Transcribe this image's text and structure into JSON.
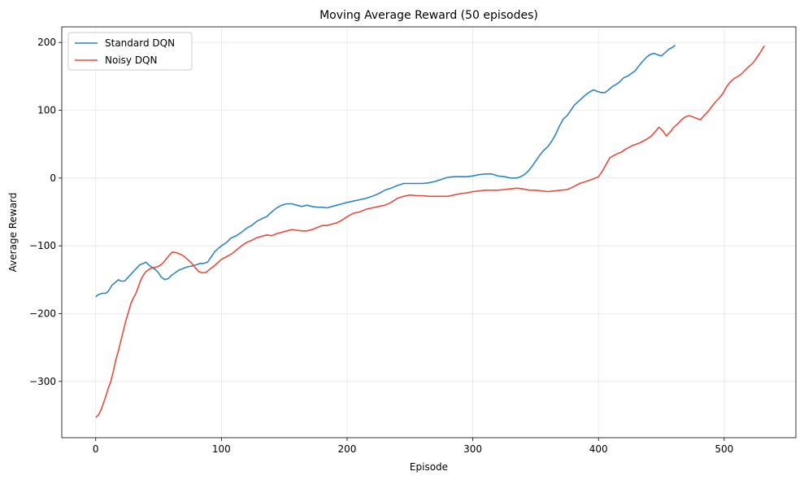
{
  "chart_data": {
    "type": "line",
    "title": "Moving Average Reward (50 episodes)",
    "xlabel": "Episode",
    "ylabel": "Average Reward",
    "xlim": [
      -27,
      557
    ],
    "ylim": [
      -383,
      223
    ],
    "xticks": [
      0,
      100,
      200,
      300,
      400,
      500
    ],
    "yticks": [
      -300,
      -200,
      -100,
      0,
      100,
      200
    ],
    "ytick_labels": [
      "−300",
      "−200",
      "−100",
      "0",
      "100",
      "200"
    ],
    "grid": true,
    "legend": "top-left",
    "series": [
      {
        "name": "Standard DQN",
        "color": "#2e86c1",
        "points": [
          [
            0,
            -175
          ],
          [
            2,
            -172
          ],
          [
            5,
            -170
          ],
          [
            8,
            -170
          ],
          [
            10,
            -167
          ],
          [
            13,
            -158
          ],
          [
            15,
            -155
          ],
          [
            18,
            -150
          ],
          [
            20,
            -152
          ],
          [
            23,
            -152
          ],
          [
            25,
            -148
          ],
          [
            28,
            -142
          ],
          [
            30,
            -138
          ],
          [
            33,
            -132
          ],
          [
            35,
            -128
          ],
          [
            38,
            -126
          ],
          [
            40,
            -124
          ],
          [
            42,
            -128
          ],
          [
            45,
            -132
          ],
          [
            48,
            -136
          ],
          [
            50,
            -140
          ],
          [
            52,
            -146
          ],
          [
            55,
            -150
          ],
          [
            58,
            -148
          ],
          [
            60,
            -144
          ],
          [
            63,
            -140
          ],
          [
            66,
            -136
          ],
          [
            70,
            -133
          ],
          [
            73,
            -131
          ],
          [
            76,
            -130
          ],
          [
            80,
            -128
          ],
          [
            83,
            -126
          ],
          [
            86,
            -126
          ],
          [
            89,
            -124
          ],
          [
            92,
            -116
          ],
          [
            95,
            -108
          ],
          [
            98,
            -103
          ],
          [
            100,
            -100
          ],
          [
            104,
            -95
          ],
          [
            108,
            -88
          ],
          [
            112,
            -85
          ],
          [
            116,
            -80
          ],
          [
            120,
            -74
          ],
          [
            124,
            -70
          ],
          [
            128,
            -64
          ],
          [
            132,
            -60
          ],
          [
            136,
            -57
          ],
          [
            140,
            -50
          ],
          [
            144,
            -44
          ],
          [
            148,
            -40
          ],
          [
            152,
            -38
          ],
          [
            156,
            -38
          ],
          [
            160,
            -40
          ],
          [
            164,
            -42
          ],
          [
            168,
            -40
          ],
          [
            172,
            -42
          ],
          [
            176,
            -43
          ],
          [
            180,
            -43
          ],
          [
            184,
            -44
          ],
          [
            188,
            -42
          ],
          [
            192,
            -40
          ],
          [
            196,
            -38
          ],
          [
            200,
            -36
          ],
          [
            205,
            -34
          ],
          [
            210,
            -32
          ],
          [
            215,
            -30
          ],
          [
            220,
            -27
          ],
          [
            225,
            -23
          ],
          [
            230,
            -18
          ],
          [
            235,
            -15
          ],
          [
            240,
            -11
          ],
          [
            245,
            -8
          ],
          [
            250,
            -8
          ],
          [
            255,
            -8
          ],
          [
            260,
            -8
          ],
          [
            265,
            -7
          ],
          [
            270,
            -5
          ],
          [
            275,
            -2
          ],
          [
            280,
            1
          ],
          [
            285,
            2
          ],
          [
            290,
            2
          ],
          [
            295,
            2
          ],
          [
            300,
            3
          ],
          [
            305,
            5
          ],
          [
            310,
            6
          ],
          [
            315,
            6
          ],
          [
            320,
            3
          ],
          [
            325,
            2
          ],
          [
            330,
            0
          ],
          [
            335,
            0
          ],
          [
            338,
            2
          ],
          [
            341,
            5
          ],
          [
            344,
            10
          ],
          [
            347,
            17
          ],
          [
            350,
            25
          ],
          [
            353,
            33
          ],
          [
            356,
            40
          ],
          [
            360,
            47
          ],
          [
            363,
            55
          ],
          [
            366,
            65
          ],
          [
            369,
            77
          ],
          [
            372,
            87
          ],
          [
            375,
            92
          ],
          [
            378,
            100
          ],
          [
            381,
            108
          ],
          [
            384,
            113
          ],
          [
            387,
            118
          ],
          [
            390,
            123
          ],
          [
            393,
            127
          ],
          [
            396,
            130
          ],
          [
            399,
            128
          ],
          [
            402,
            126
          ],
          [
            405,
            126
          ],
          [
            408,
            130
          ],
          [
            411,
            135
          ],
          [
            414,
            138
          ],
          [
            417,
            142
          ],
          [
            420,
            148
          ],
          [
            423,
            150
          ],
          [
            426,
            154
          ],
          [
            429,
            158
          ],
          [
            432,
            165
          ],
          [
            435,
            172
          ],
          [
            438,
            178
          ],
          [
            441,
            182
          ],
          [
            444,
            184
          ],
          [
            447,
            182
          ],
          [
            450,
            180
          ],
          [
            453,
            185
          ],
          [
            456,
            190
          ],
          [
            459,
            193
          ],
          [
            461,
            196
          ]
        ]
      },
      {
        "name": "Noisy DQN",
        "color": "#e74c3c",
        "points": [
          [
            0,
            -353
          ],
          [
            2,
            -350
          ],
          [
            4,
            -343
          ],
          [
            6,
            -333
          ],
          [
            8,
            -322
          ],
          [
            10,
            -310
          ],
          [
            12,
            -300
          ],
          [
            14,
            -285
          ],
          [
            16,
            -268
          ],
          [
            18,
            -255
          ],
          [
            20,
            -240
          ],
          [
            22,
            -225
          ],
          [
            24,
            -210
          ],
          [
            26,
            -198
          ],
          [
            28,
            -185
          ],
          [
            30,
            -177
          ],
          [
            32,
            -170
          ],
          [
            34,
            -160
          ],
          [
            36,
            -150
          ],
          [
            38,
            -143
          ],
          [
            40,
            -138
          ],
          [
            43,
            -134
          ],
          [
            46,
            -132
          ],
          [
            49,
            -131
          ],
          [
            52,
            -128
          ],
          [
            55,
            -122
          ],
          [
            58,
            -115
          ],
          [
            61,
            -109
          ],
          [
            64,
            -110
          ],
          [
            67,
            -112
          ],
          [
            70,
            -115
          ],
          [
            73,
            -120
          ],
          [
            76,
            -125
          ],
          [
            79,
            -132
          ],
          [
            82,
            -138
          ],
          [
            85,
            -140
          ],
          [
            88,
            -139
          ],
          [
            91,
            -134
          ],
          [
            94,
            -130
          ],
          [
            97,
            -125
          ],
          [
            100,
            -120
          ],
          [
            104,
            -116
          ],
          [
            108,
            -112
          ],
          [
            112,
            -106
          ],
          [
            116,
            -100
          ],
          [
            120,
            -95
          ],
          [
            124,
            -92
          ],
          [
            128,
            -88
          ],
          [
            132,
            -86
          ],
          [
            136,
            -84
          ],
          [
            140,
            -85
          ],
          [
            144,
            -82
          ],
          [
            148,
            -80
          ],
          [
            152,
            -78
          ],
          [
            156,
            -76
          ],
          [
            160,
            -77
          ],
          [
            164,
            -78
          ],
          [
            168,
            -78
          ],
          [
            172,
            -76
          ],
          [
            176,
            -73
          ],
          [
            180,
            -70
          ],
          [
            184,
            -70
          ],
          [
            188,
            -68
          ],
          [
            192,
            -66
          ],
          [
            196,
            -62
          ],
          [
            200,
            -57
          ],
          [
            205,
            -52
          ],
          [
            210,
            -50
          ],
          [
            215,
            -46
          ],
          [
            220,
            -44
          ],
          [
            225,
            -42
          ],
          [
            230,
            -40
          ],
          [
            235,
            -36
          ],
          [
            240,
            -30
          ],
          [
            245,
            -27
          ],
          [
            250,
            -25
          ],
          [
            255,
            -26
          ],
          [
            260,
            -26
          ],
          [
            265,
            -27
          ],
          [
            270,
            -27
          ],
          [
            275,
            -27
          ],
          [
            280,
            -27
          ],
          [
            285,
            -25
          ],
          [
            290,
            -23
          ],
          [
            295,
            -22
          ],
          [
            300,
            -20
          ],
          [
            305,
            -19
          ],
          [
            310,
            -18
          ],
          [
            315,
            -18
          ],
          [
            320,
            -18
          ],
          [
            325,
            -17
          ],
          [
            330,
            -16
          ],
          [
            335,
            -15
          ],
          [
            340,
            -16
          ],
          [
            345,
            -18
          ],
          [
            350,
            -18
          ],
          [
            355,
            -19
          ],
          [
            360,
            -20
          ],
          [
            365,
            -19
          ],
          [
            370,
            -18
          ],
          [
            375,
            -17
          ],
          [
            380,
            -13
          ],
          [
            385,
            -8
          ],
          [
            390,
            -5
          ],
          [
            395,
            -2
          ],
          [
            400,
            2
          ],
          [
            403,
            10
          ],
          [
            406,
            20
          ],
          [
            409,
            30
          ],
          [
            412,
            33
          ],
          [
            415,
            36
          ],
          [
            418,
            38
          ],
          [
            421,
            42
          ],
          [
            424,
            45
          ],
          [
            427,
            48
          ],
          [
            430,
            50
          ],
          [
            433,
            52
          ],
          [
            436,
            55
          ],
          [
            439,
            58
          ],
          [
            442,
            62
          ],
          [
            445,
            68
          ],
          [
            448,
            75
          ],
          [
            451,
            70
          ],
          [
            454,
            62
          ],
          [
            457,
            68
          ],
          [
            460,
            75
          ],
          [
            463,
            80
          ],
          [
            466,
            86
          ],
          [
            469,
            90
          ],
          [
            472,
            92
          ],
          [
            475,
            90
          ],
          [
            478,
            88
          ],
          [
            481,
            86
          ],
          [
            484,
            92
          ],
          [
            487,
            98
          ],
          [
            490,
            105
          ],
          [
            493,
            112
          ],
          [
            496,
            118
          ],
          [
            499,
            125
          ],
          [
            502,
            135
          ],
          [
            505,
            142
          ],
          [
            508,
            147
          ],
          [
            511,
            150
          ],
          [
            514,
            154
          ],
          [
            517,
            160
          ],
          [
            520,
            165
          ],
          [
            523,
            170
          ],
          [
            526,
            178
          ],
          [
            529,
            186
          ],
          [
            532,
            195
          ]
        ]
      }
    ]
  }
}
